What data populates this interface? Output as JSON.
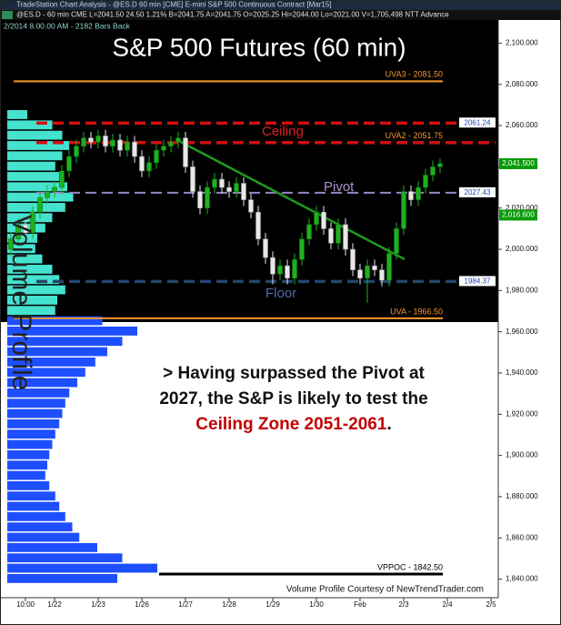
{
  "chart_data": {
    "type": "candlestick",
    "window_title": "TradeStation Chart Analysis - @ES.D 60 min [CME] E-mini S&P 500 Continuous Contract [Mar15]",
    "symbol_line": "@ES.D - 60 min CME L=2041.50 24.50 1.21% B=2041.75 A=2041.75 O=2025.25 Hi=2044.00 Lo=2021.00 V=1,705,498 NTT Advance",
    "bars_back": "2/2014 8.00.00 AM - 2182 Bars Back",
    "title": "S&P 500 Futures (60 min)",
    "profile_label": "Volume Profile",
    "zones": [
      "Ceiling",
      "Pivot",
      "Floor"
    ],
    "annotation": [
      "> Having surpassed the Pivot at",
      "2027, the S&P is likely to test the"
    ],
    "annotation_highlight": "Ceiling Zone 2051-2061",
    "annotation_end": ".",
    "footer": "Volume Profile Courtesy of NewTrendTrader.com",
    "x_labels": [
      "10:00",
      "1/22",
      "1/23",
      "1/26",
      "1/27",
      "1/28",
      "1/29",
      "1/30",
      "Feb",
      "2/3",
      "2/4",
      "2/5"
    ],
    "open": [
      2000,
      2005,
      2012,
      2008,
      2018,
      2025,
      2028,
      2030,
      2038,
      2045,
      2050,
      2054,
      2052,
      2055,
      2050,
      2053,
      2048,
      2052,
      2045,
      2038,
      2042,
      2048,
      2050,
      2052,
      2054,
      2040,
      2028,
      2020,
      2030,
      2034,
      2030,
      2028,
      2032,
      2024,
      2018,
      2005,
      1996,
      1988,
      1992,
      1986,
      1995,
      2005,
      2012,
      2018,
      2010,
      2003,
      2012,
      2000,
      1990,
      1986,
      1992,
      1990,
      1985,
      1998,
      2010,
      2028,
      2024,
      2030,
      2036,
      2040
    ],
    "high": [
      2008,
      2015,
      2015,
      2021,
      2028,
      2031,
      2033,
      2041,
      2048,
      2053,
      2057,
      2057,
      2058,
      2058,
      2056,
      2056,
      2055,
      2055,
      2048,
      2045,
      2051,
      2053,
      2055,
      2057,
      2057,
      2043,
      2031,
      2033,
      2037,
      2037,
      2033,
      2035,
      2035,
      2027,
      2021,
      2008,
      1999,
      1995,
      1995,
      1998,
      2008,
      2015,
      2021,
      2021,
      2013,
      2015,
      2015,
      2003,
      1993,
      1995,
      1995,
      1993,
      2001,
      2013,
      2031,
      2031,
      2033,
      2039,
      2043,
      2044
    ],
    "low": [
      1997,
      2002,
      2005,
      2005,
      2015,
      2022,
      2025,
      2027,
      2035,
      2042,
      2047,
      2049,
      2049,
      2047,
      2047,
      2045,
      2045,
      2042,
      2035,
      2035,
      2039,
      2045,
      2047,
      2049,
      2037,
      2025,
      2017,
      2017,
      2027,
      2027,
      2025,
      2025,
      2021,
      2015,
      2002,
      1993,
      1983,
      1985,
      1983,
      1983,
      1992,
      2002,
      2009,
      2007,
      2000,
      2000,
      1997,
      1987,
      1983,
      1974,
      1987,
      1982,
      1982,
      1995,
      2007,
      2021,
      2021,
      2027,
      2033,
      2037
    ],
    "close": [
      2005,
      2012,
      2008,
      2018,
      2025,
      2028,
      2030,
      2038,
      2045,
      2050,
      2054,
      2052,
      2055,
      2050,
      2053,
      2048,
      2052,
      2045,
      2038,
      2042,
      2048,
      2050,
      2052,
      2054,
      2040,
      2028,
      2020,
      2030,
      2034,
      2030,
      2028,
      2032,
      2024,
      2018,
      2005,
      1996,
      1988,
      1992,
      1986,
      1995,
      2005,
      2012,
      2018,
      2010,
      2003,
      2012,
      2000,
      1990,
      1986,
      1992,
      1990,
      1985,
      1998,
      2010,
      2028,
      2024,
      2030,
      2036,
      2040,
      2041.5
    ],
    "up_color": "#1fb01f",
    "down_color": "#e8e8e8",
    "profile_prices": [
      2065,
      2060,
      2055,
      2050,
      2045,
      2040,
      2035,
      2030,
      2025,
      2020,
      2015,
      2010,
      2005,
      2000,
      1995,
      1990,
      1985,
      1980,
      1975,
      1970,
      1965,
      1960,
      1955,
      1950,
      1945,
      1940,
      1935,
      1930,
      1925,
      1920,
      1915,
      1910,
      1905,
      1900,
      1895,
      1890,
      1885,
      1880,
      1875,
      1870,
      1865,
      1860,
      1855,
      1850,
      1845,
      1840
    ],
    "profile_volumes": [
      20,
      45,
      55,
      62,
      55,
      48,
      52,
      60,
      66,
      58,
      45,
      38,
      30,
      28,
      35,
      45,
      52,
      58,
      50,
      48,
      95,
      130,
      115,
      100,
      88,
      78,
      70,
      62,
      58,
      55,
      52,
      48,
      45,
      42,
      40,
      38,
      42,
      48,
      52,
      58,
      65,
      72,
      90,
      115,
      150,
      110
    ],
    "profile_inside_color": "#45e2cf",
    "profile_outside_color": "#1e4fff",
    "levels": [
      {
        "label": "UVA3 - 2081.50",
        "value": 2081.5,
        "color": "#f29a2e",
        "dash": false,
        "tag": false
      },
      {
        "label": "2061.24",
        "value": 2061.24,
        "color": "#d01010",
        "dash": true,
        "tag": true
      },
      {
        "label": "UVA2 - 2051.75",
        "value": 2051.75,
        "color": "#d01010",
        "dash": true,
        "tag": false
      },
      {
        "label": "2027.43",
        "value": 2027.43,
        "color": "#9a84c4",
        "dash": true,
        "tag": true
      },
      {
        "label": "1984.37",
        "value": 1984.37,
        "color": "#24446e",
        "dash": true,
        "tag": true
      },
      {
        "label": "UVA - 1966.50",
        "value": 1966.5,
        "color": "#f29a2e",
        "dash": false,
        "tag": false
      },
      {
        "label": "VPPOC - 1842.50",
        "value": 1842.5,
        "color": "#000000",
        "dash": false,
        "tag": false
      }
    ],
    "price_markers": [
      {
        "label": "2,041.500",
        "value": 2041.5,
        "color": "#0a9a0a"
      },
      {
        "label": "2,016.600",
        "value": 2016.6,
        "color": "#0a9a0a"
      }
    ],
    "ylim": [
      1831,
      2109
    ],
    "yticks": [
      {
        "value": 1840,
        "label": "1,840.000"
      },
      {
        "value": 1860,
        "label": "1,860.000"
      },
      {
        "value": 1880,
        "label": "1,880.000"
      },
      {
        "value": 1900,
        "label": "1,900.000"
      },
      {
        "value": 1920,
        "label": "1,920.000"
      },
      {
        "value": 1940,
        "label": "1,940.000"
      },
      {
        "value": 1960,
        "label": "1,960.000"
      },
      {
        "value": 1980,
        "label": "1,980.000"
      },
      {
        "value": 2000,
        "label": "2,000.000"
      },
      {
        "value": 2020,
        "label": "2,020.000"
      },
      {
        "value": 2040,
        "label": "2,040.000"
      },
      {
        "value": 2060,
        "label": "2,060.000"
      },
      {
        "value": 2080,
        "label": "2,080.000"
      },
      {
        "value": 2100,
        "label": "2,100.000"
      }
    ],
    "grid": false
  }
}
